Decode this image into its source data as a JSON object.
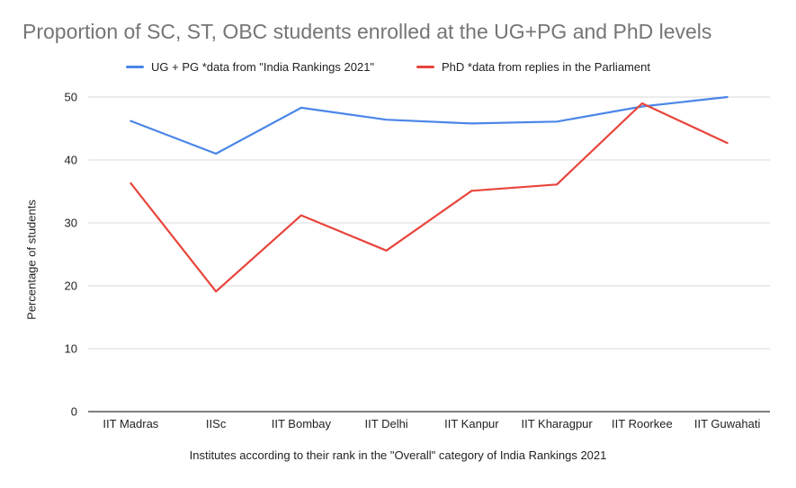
{
  "chart_data": {
    "type": "line",
    "title": "Proportion of SC, ST, OBC students enrolled at the UG+PG and PhD levels",
    "xlabel": "Institutes according to their rank in the \"Overall\" category of India Rankings 2021",
    "ylabel": "Percentage of students",
    "categories": [
      "IIT Madras",
      "IISc",
      "IIT Bombay",
      "IIT Delhi",
      "IIT Kanpur",
      "IIT Kharagpur",
      "IIT Roorkee",
      "IIT Guwahati"
    ],
    "ylim": [
      0,
      50
    ],
    "yticks": [
      "0",
      "10",
      "20",
      "30",
      "40",
      "50"
    ],
    "grid": true,
    "legend_position": "top",
    "series": [
      {
        "name": "UG + PG *data from \"India Rankings 2021\"",
        "color": "#4a86e8",
        "values": [
          46.2,
          41.0,
          48.3,
          46.4,
          45.8,
          46.1,
          48.5,
          50.0
        ]
      },
      {
        "name": "PhD *data from replies in the Parliament",
        "color": "#e8453c",
        "values": [
          36.3,
          19.1,
          31.2,
          25.6,
          35.1,
          36.1,
          49.0,
          42.7
        ]
      }
    ]
  }
}
